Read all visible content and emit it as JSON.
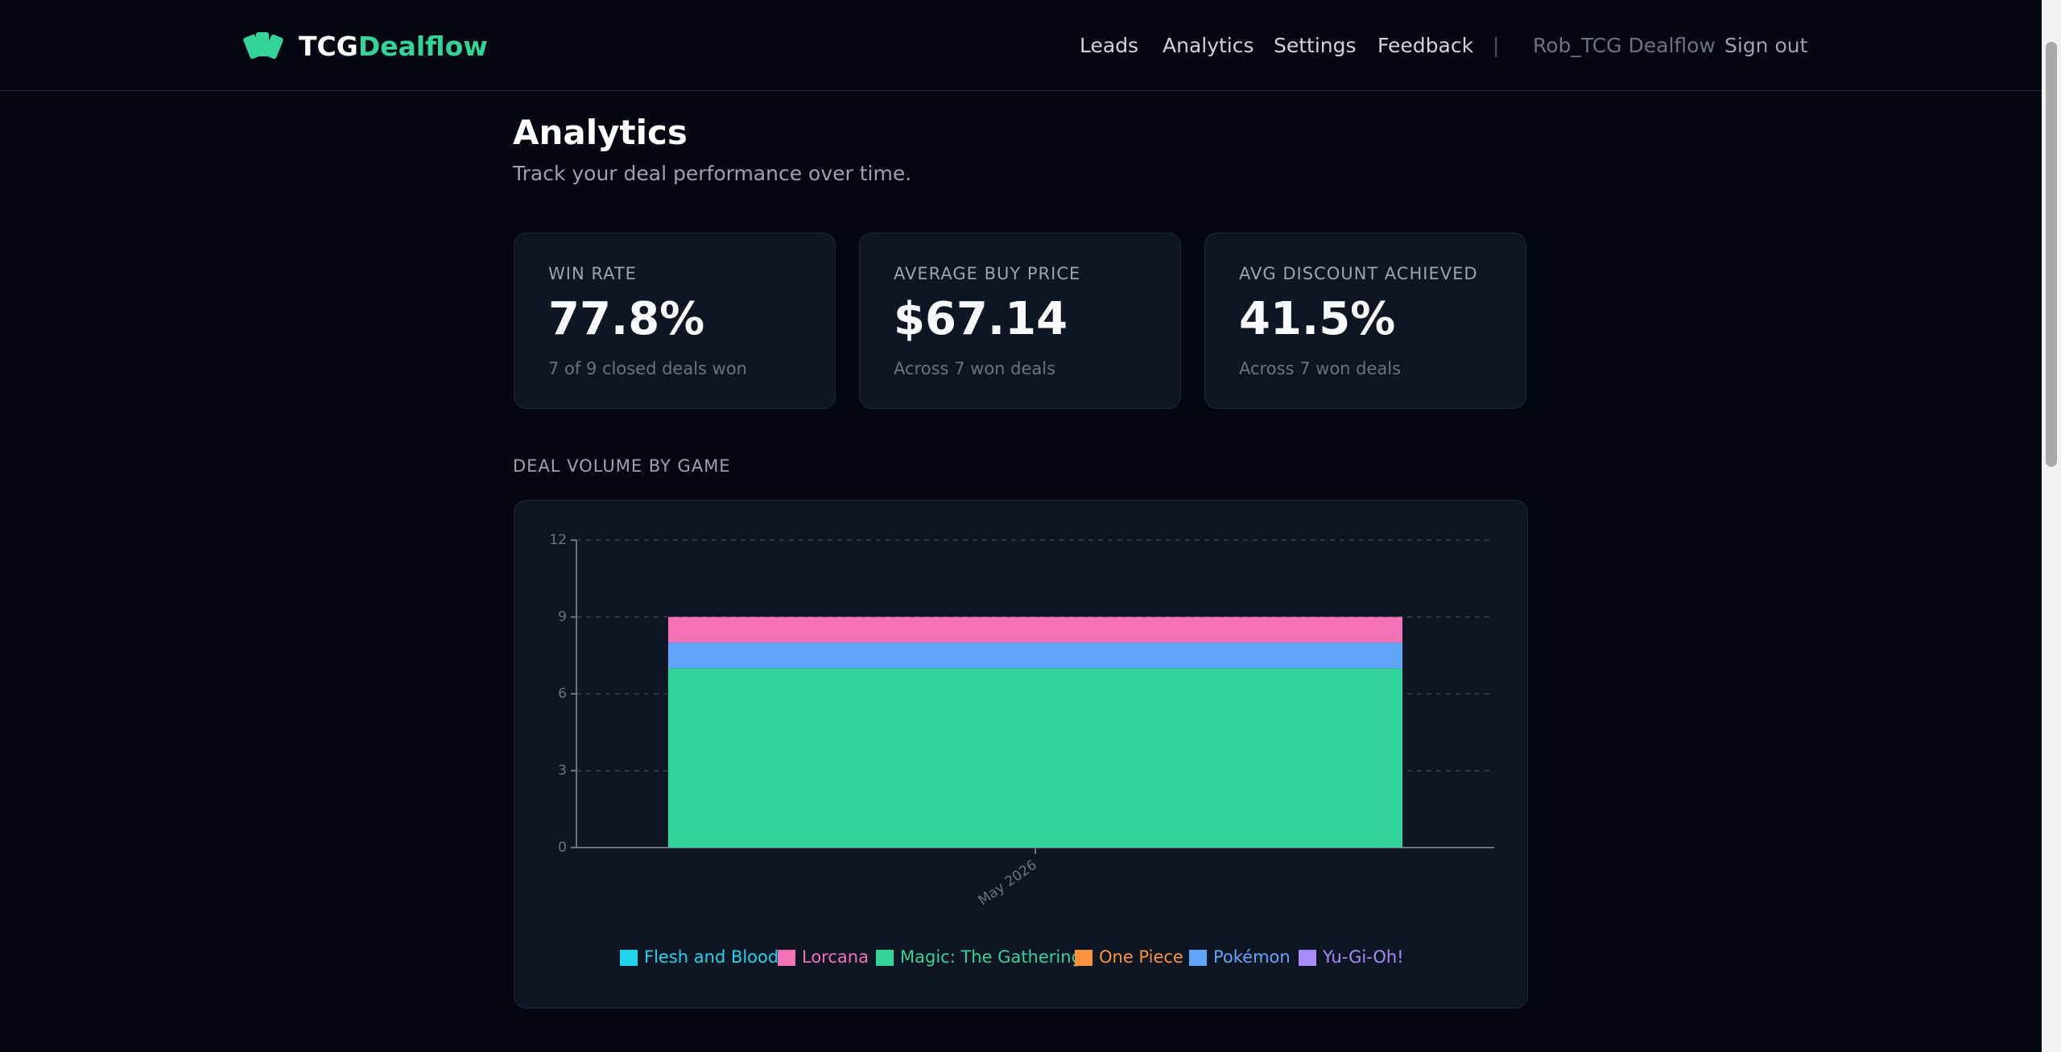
{
  "header": {
    "brand_part1": "TCG",
    "brand_part2": "Dealflow",
    "nav": [
      "Leads",
      "Analytics",
      "Settings",
      "Feedback"
    ],
    "divider": "|",
    "user": "Rob_TCG Dealflow",
    "sign_out": "Sign out"
  },
  "page": {
    "title": "Analytics",
    "subtitle": "Track your deal performance over time."
  },
  "cards": [
    {
      "label": "WIN RATE",
      "value": "77.8%",
      "note": "7 of 9 closed deals won"
    },
    {
      "label": "AVERAGE BUY PRICE",
      "value": "$67.14",
      "note": "Across 7 won deals"
    },
    {
      "label": "AVG DISCOUNT ACHIEVED",
      "value": "41.5%",
      "note": "Across 7 won deals"
    }
  ],
  "chart_data": {
    "type": "stacked_bar",
    "title": "DEAL VOLUME BY GAME",
    "categories": [
      "May 2026"
    ],
    "series": [
      {
        "name": "Magic: The Gathering",
        "color": "#34d399",
        "values": [
          7
        ]
      },
      {
        "name": "Pokémon",
        "color": "#60a5fa",
        "values": [
          1
        ]
      },
      {
        "name": "Lorcana",
        "color": "#f472b6",
        "values": [
          1
        ]
      },
      {
        "name": "Flesh and Blood",
        "color": "#22d3ee",
        "values": [
          0
        ]
      },
      {
        "name": "One Piece",
        "color": "#fb923c",
        "values": [
          0
        ]
      },
      {
        "name": "Yu-Gi-Oh!",
        "color": "#a78bfa",
        "values": [
          0
        ]
      }
    ],
    "ylim": [
      0,
      12
    ],
    "yticks": [
      0,
      3,
      6,
      9,
      12
    ],
    "grid": true
  }
}
